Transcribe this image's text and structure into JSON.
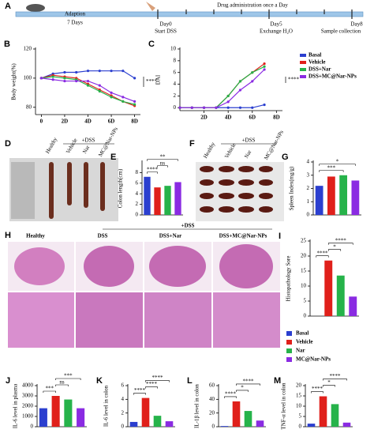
{
  "panel_A": "A",
  "timeline": {
    "adaption": "Adaption",
    "days": "7 Days",
    "drug": "Drug administration once a Day",
    "day0": "Day0",
    "start": "Start DSS",
    "day5": "Day5",
    "exchange": "Exchange H₂O",
    "day8": "Day8",
    "sample": "Sample collection"
  },
  "photo_D": {
    "label": "D",
    "group": "+DSS",
    "lanes": [
      "Healthy",
      "Vehicle",
      "Nar",
      "MC@Nar-NPs"
    ]
  },
  "photo_F": {
    "label": "F",
    "group": "+DSS",
    "lanes": [
      "Healthy",
      "Vehicle",
      "Nar",
      "MC@Nar-NPs"
    ]
  },
  "histology_H": {
    "label": "H",
    "group": "+DSS",
    "columns": [
      "Healthy",
      "DSS",
      "DSS+Nar",
      "DSS+MC@Nar-NPs"
    ]
  },
  "chart_data": [
    {
      "type": "line",
      "label": "B",
      "ylabel": "Body weight(%)",
      "x": [
        0,
        1,
        2,
        3,
        4,
        5,
        6,
        7,
        8
      ],
      "xlim": [
        -0.5,
        8.5
      ],
      "xticks": [
        0,
        {
          "value": 2,
          "label": "2D"
        },
        {
          "value": 4,
          "label": "4D"
        },
        {
          "value": 6,
          "label": "6D"
        },
        {
          "value": 8,
          "label": "8D"
        }
      ],
      "ylim": [
        75,
        120
      ],
      "yticks": [
        80,
        100,
        120
      ],
      "series": [
        {
          "name": "Basal",
          "color": "#2b3fcf",
          "values": [
            100,
            103,
            104,
            104,
            105,
            105,
            105,
            105,
            100
          ]
        },
        {
          "name": "Vehicle",
          "color": "#e0201b",
          "values": [
            100,
            102,
            101,
            100,
            96,
            92,
            88,
            84,
            81
          ]
        },
        {
          "name": "Nar",
          "color": "#26b34a",
          "values": [
            100,
            101,
            100,
            99,
            95,
            91,
            87,
            84,
            82
          ]
        },
        {
          "name": "MC@Nar-NPs",
          "color": "#8a2be2",
          "values": [
            100,
            99,
            98,
            98,
            98,
            95,
            90,
            87,
            84
          ]
        }
      ],
      "annotations": [
        "****"
      ]
    },
    {
      "type": "line",
      "label": "C",
      "ylabel": "DAI",
      "x": [
        0,
        1,
        2,
        3,
        4,
        5,
        6,
        7
      ],
      "xlim": [
        0,
        8.5
      ],
      "xticks": [
        {
          "value": 2,
          "label": "2D"
        },
        {
          "value": 4,
          "label": "4D"
        },
        {
          "value": 6,
          "label": "6D"
        },
        {
          "value": 8,
          "label": "8D"
        }
      ],
      "ylim": [
        -0.5,
        10
      ],
      "yticks": [
        0,
        2,
        4,
        6,
        8,
        10
      ],
      "legend": "right",
      "series": [
        {
          "name": "Basal",
          "color": "#2b3fcf",
          "values": [
            0,
            0,
            0,
            0,
            0,
            0,
            0,
            0.5
          ]
        },
        {
          "name": "Vehicle",
          "color": "#e0201b",
          "values": [
            0,
            0,
            0,
            0,
            2,
            4.5,
            6,
            7.5
          ]
        },
        {
          "name": "DSS+Nar",
          "color": "#26b34a",
          "values": [
            0,
            0,
            0,
            0,
            2,
            4.5,
            6,
            7
          ]
        },
        {
          "name": "DSS+MC@Nar-NPs",
          "color": "#8a2be2",
          "values": [
            0,
            0,
            0,
            0,
            1,
            3,
            4.5,
            6.5
          ]
        }
      ],
      "annotations": [
        "****"
      ]
    },
    {
      "type": "bar",
      "label": "E",
      "ylabel": "Colon length(cm)",
      "values": [
        7.2,
        5.2,
        5.5,
        6.2
      ],
      "colors": [
        "#2b3fcf",
        "#e0201b",
        "#26b34a",
        "#8a2be2"
      ],
      "ylim": [
        0,
        10
      ],
      "yticks": [
        0,
        2,
        4,
        6,
        8
      ],
      "annotations": [
        "****",
        "ns",
        "**"
      ]
    },
    {
      "type": "bar",
      "label": "G",
      "ylabel": "Spleen Index(mg/g)",
      "values": [
        2.2,
        2.9,
        3.0,
        2.6
      ],
      "colors": [
        "#2b3fcf",
        "#e0201b",
        "#26b34a",
        "#8a2be2"
      ],
      "ylim": [
        0,
        4
      ],
      "yticks": [
        0,
        1,
        2,
        3,
        4
      ],
      "annotations": [
        "***",
        "*"
      ]
    },
    {
      "type": "bar",
      "label": "I",
      "ylabel": "Histopathology Sore",
      "values": [
        0,
        18.5,
        13.5,
        6.5
      ],
      "colors": [
        "#2b3fcf",
        "#e0201b",
        "#26b34a",
        "#8a2be2"
      ],
      "ylim": [
        0,
        25
      ],
      "yticks": [
        0,
        5,
        10,
        15,
        20,
        25
      ],
      "legend": [
        "Basal",
        "Vehicle",
        "Nar",
        "MC@Nar-NPs"
      ],
      "annotations": [
        "****",
        "*",
        "****"
      ]
    },
    {
      "type": "bar",
      "label": "J",
      "ylabel": "IL-6 level in plasma",
      "values": [
        1800,
        3000,
        2650,
        1800
      ],
      "colors": [
        "#2b3fcf",
        "#e0201b",
        "#26b34a",
        "#8a2be2"
      ],
      "ylim": [
        0,
        4000
      ],
      "yticks": [
        0,
        1000,
        2000,
        3000,
        4000
      ],
      "annotations": [
        "***",
        "ns",
        "***"
      ]
    },
    {
      "type": "bar",
      "label": "K",
      "ylabel": "IL-6 level in colon",
      "values": [
        0.7,
        4.2,
        1.6,
        0.8
      ],
      "colors": [
        "#2b3fcf",
        "#e0201b",
        "#26b34a",
        "#8a2be2"
      ],
      "ylim": [
        0,
        6
      ],
      "yticks": [
        0,
        2,
        4,
        6
      ],
      "annotations": [
        "****",
        "****",
        "****"
      ]
    },
    {
      "type": "bar",
      "label": "L",
      "ylabel": "IL-1β level in colon",
      "values": [
        1,
        37,
        23,
        9
      ],
      "colors": [
        "#2b3fcf",
        "#e0201b",
        "#26b34a",
        "#8a2be2"
      ],
      "ylim": [
        0,
        60
      ],
      "yticks": [
        0,
        20,
        40,
        60
      ],
      "annotations": [
        "****",
        "*",
        "****"
      ]
    },
    {
      "type": "bar",
      "label": "M",
      "ylabel": "TNF-α level in colon",
      "values": [
        1.5,
        14.8,
        11,
        2
      ],
      "colors": [
        "#2b3fcf",
        "#e0201b",
        "#26b34a",
        "#8a2be2"
      ],
      "ylim": [
        0,
        20
      ],
      "yticks": [
        0,
        5,
        10,
        15,
        20
      ],
      "annotations": [
        "****",
        "*",
        "****"
      ]
    }
  ]
}
